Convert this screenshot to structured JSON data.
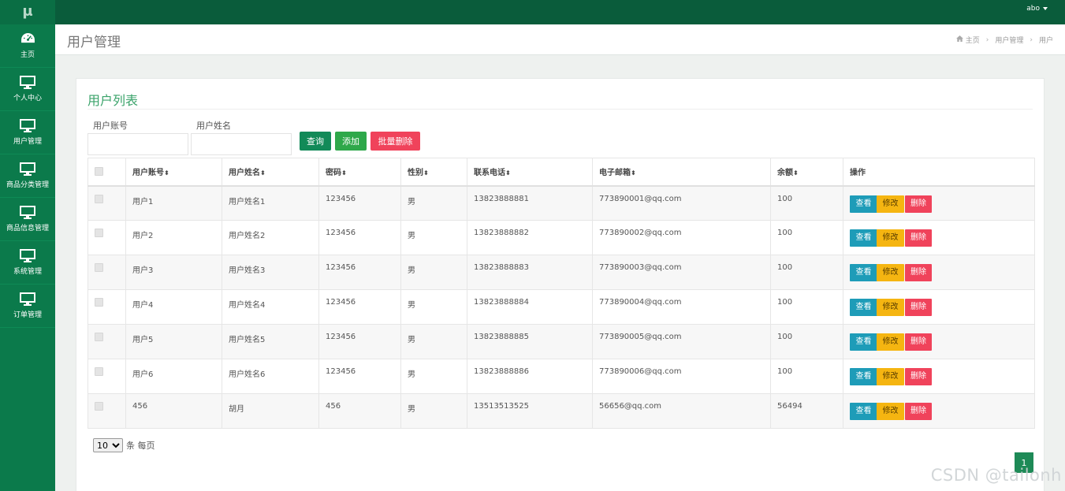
{
  "sidebar": {
    "logo": "μ",
    "items": [
      {
        "label": "主页",
        "icon": "dashboard-icon"
      },
      {
        "label": "个人中心",
        "icon": "monitor-icon"
      },
      {
        "label": "用户管理",
        "icon": "monitor-icon"
      },
      {
        "label": "商品分类管理",
        "icon": "monitor-icon"
      },
      {
        "label": "商品信息管理",
        "icon": "monitor-icon"
      },
      {
        "label": "系统管理",
        "icon": "monitor-icon"
      },
      {
        "label": "订单管理",
        "icon": "monitor-icon"
      }
    ]
  },
  "topbar": {
    "username": "abo"
  },
  "header": {
    "title": "用户管理",
    "breadcrumb": [
      "主页",
      "用户管理",
      "用户"
    ]
  },
  "card": {
    "title": "用户列表",
    "search": {
      "account_label": "用户账号",
      "account_value": "",
      "name_label": "用户姓名",
      "name_value": ""
    },
    "buttons": {
      "query": "查询",
      "add": "添加",
      "batch_delete": "批量删除"
    }
  },
  "table": {
    "columns": [
      "用户账号",
      "用户姓名",
      "密码",
      "性别",
      "联系电话",
      "电子邮箱",
      "余额",
      "操作"
    ],
    "actions": {
      "view": "查看",
      "edit": "修改",
      "delete": "删除"
    },
    "rows": [
      {
        "account": "用户1",
        "name": "用户姓名1",
        "password": "123456",
        "gender": "男",
        "phone": "13823888881",
        "email": "773890001@qq.com",
        "balance": "100"
      },
      {
        "account": "用户2",
        "name": "用户姓名2",
        "password": "123456",
        "gender": "男",
        "phone": "13823888882",
        "email": "773890002@qq.com",
        "balance": "100"
      },
      {
        "account": "用户3",
        "name": "用户姓名3",
        "password": "123456",
        "gender": "男",
        "phone": "13823888883",
        "email": "773890003@qq.com",
        "balance": "100"
      },
      {
        "account": "用户4",
        "name": "用户姓名4",
        "password": "123456",
        "gender": "男",
        "phone": "13823888884",
        "email": "773890004@qq.com",
        "balance": "100"
      },
      {
        "account": "用户5",
        "name": "用户姓名5",
        "password": "123456",
        "gender": "男",
        "phone": "13823888885",
        "email": "773890005@qq.com",
        "balance": "100"
      },
      {
        "account": "用户6",
        "name": "用户姓名6",
        "password": "123456",
        "gender": "男",
        "phone": "13823888886",
        "email": "773890006@qq.com",
        "balance": "100"
      },
      {
        "account": "456",
        "name": "胡月",
        "password": "456",
        "gender": "男",
        "phone": "13513513525",
        "email": "56656@qq.com",
        "balance": "56494"
      }
    ]
  },
  "pagination": {
    "per_page": "10",
    "per_page_suffix": "条 每页",
    "current_page": "1"
  },
  "watermark": "CSDN @tailonh",
  "colors": {
    "sidebar": "#0b7a4b",
    "topbar": "#0a5c3b",
    "accent": "#3aa36a",
    "danger": "#f0435b",
    "warning": "#f5b511",
    "info": "#1e9cb8"
  }
}
